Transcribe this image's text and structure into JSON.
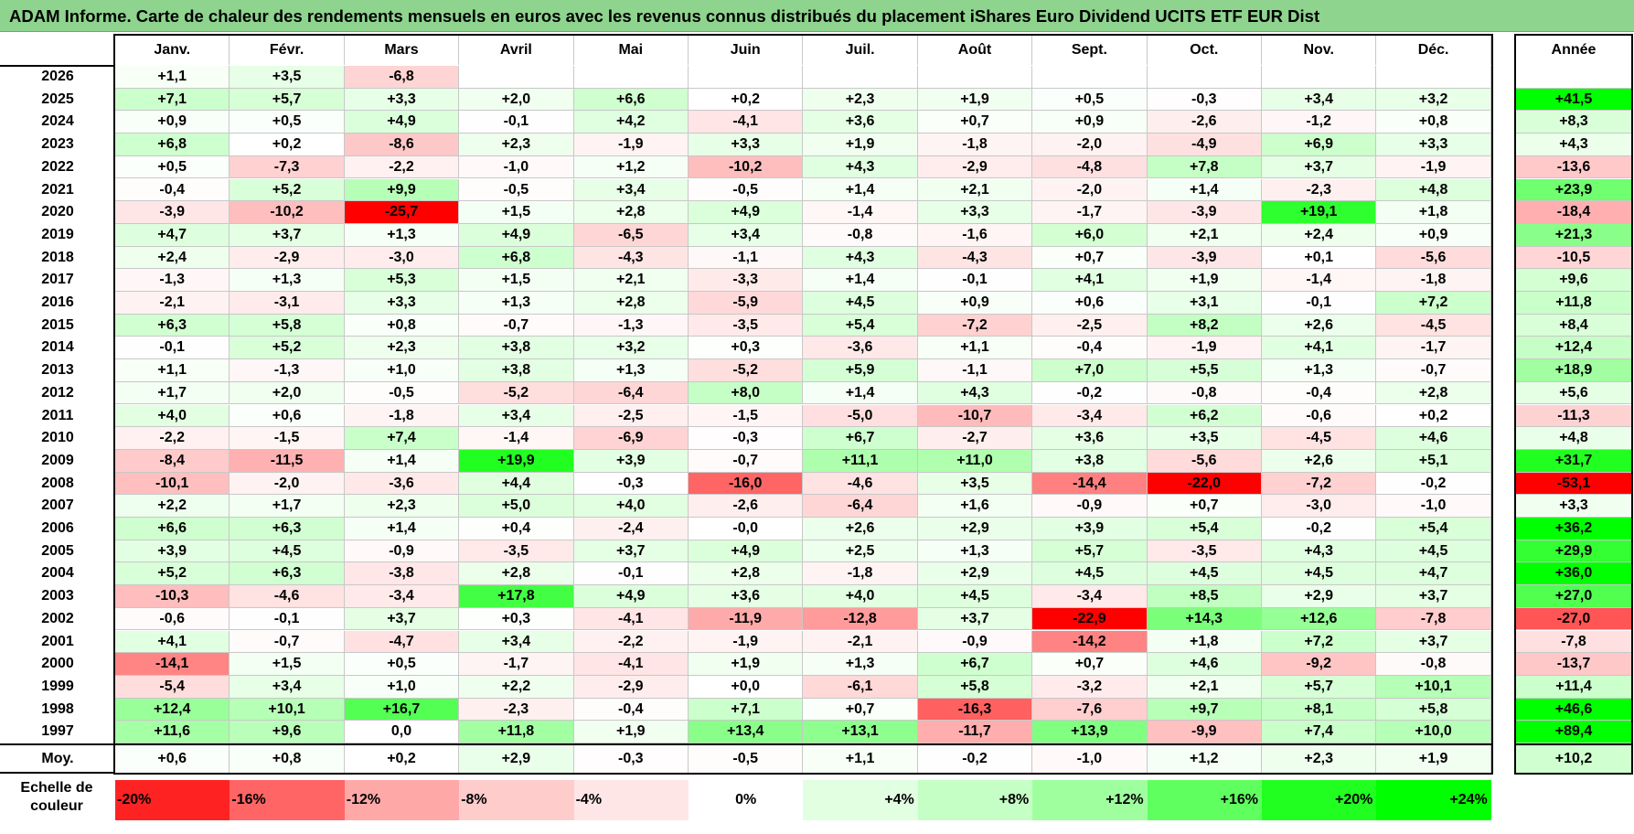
{
  "title": "ADAM Informe. Carte de chaleur des rendements mensuels en euros avec les revenus connus distribués du placement iShares Euro Dividend UCITS ETF EUR Dist",
  "colors": {
    "title_bg": "#8ed48e",
    "neg_max": "#ff0000",
    "pos_max": "#00ff00",
    "neutral": "#ffffff"
  },
  "chart_data": {
    "type": "heatmap",
    "title": "ADAM Informe. Carte de chaleur des rendements mensuels en euros avec les revenus connus distribués du placement iShares Euro Dividend UCITS ETF EUR Dist",
    "columns": [
      "Janv.",
      "Févr.",
      "Mars",
      "Avril",
      "Mai",
      "Juin",
      "Juil.",
      "Août",
      "Sept.",
      "Oct.",
      "Nov.",
      "Déc."
    ],
    "annual_label": "Année",
    "rows": [
      {
        "year": "2026",
        "values": [
          "+1,1",
          "+3,5",
          "-6,8",
          "",
          "",
          "",
          "",
          "",
          "",
          "",
          "",
          ""
        ],
        "annual": ""
      },
      {
        "year": "2025",
        "values": [
          "+7,1",
          "+5,7",
          "+3,3",
          "+2,0",
          "+6,6",
          "+0,2",
          "+2,3",
          "+1,9",
          "+0,5",
          "-0,3",
          "+3,4",
          "+3,2"
        ],
        "annual": "+41,5"
      },
      {
        "year": "2024",
        "values": [
          "+0,9",
          "+0,5",
          "+4,9",
          "-0,1",
          "+4,2",
          "-4,1",
          "+3,6",
          "+0,7",
          "+0,9",
          "-2,6",
          "-1,2",
          "+0,8"
        ],
        "annual": "+8,3"
      },
      {
        "year": "2023",
        "values": [
          "+6,8",
          "+0,2",
          "-8,6",
          "+2,3",
          "-1,9",
          "+3,3",
          "+1,9",
          "-1,8",
          "-2,0",
          "-4,9",
          "+6,9",
          "+3,3"
        ],
        "annual": "+4,3"
      },
      {
        "year": "2022",
        "values": [
          "+0,5",
          "-7,3",
          "-2,2",
          "-1,0",
          "+1,2",
          "-10,2",
          "+4,3",
          "-2,9",
          "-4,8",
          "+7,8",
          "+3,7",
          "-1,9"
        ],
        "annual": "-13,6"
      },
      {
        "year": "2021",
        "values": [
          "-0,4",
          "+5,2",
          "+9,9",
          "-0,5",
          "+3,4",
          "-0,5",
          "+1,4",
          "+2,1",
          "-2,0",
          "+1,4",
          "-2,3",
          "+4,8"
        ],
        "annual": "+23,9"
      },
      {
        "year": "2020",
        "values": [
          "-3,9",
          "-10,2",
          "-25,7",
          "+1,5",
          "+2,8",
          "+4,9",
          "-1,4",
          "+3,3",
          "-1,7",
          "-3,9",
          "+19,1",
          "+1,8"
        ],
        "annual": "-18,4"
      },
      {
        "year": "2019",
        "values": [
          "+4,7",
          "+3,7",
          "+1,3",
          "+4,9",
          "-6,5",
          "+3,4",
          "-0,8",
          "-1,6",
          "+6,0",
          "+2,1",
          "+2,4",
          "+0,9"
        ],
        "annual": "+21,3"
      },
      {
        "year": "2018",
        "values": [
          "+2,4",
          "-2,9",
          "-3,0",
          "+6,8",
          "-4,3",
          "-1,1",
          "+4,3",
          "-4,3",
          "+0,7",
          "-3,9",
          "+0,1",
          "-5,6"
        ],
        "annual": "-10,5"
      },
      {
        "year": "2017",
        "values": [
          "-1,3",
          "+1,3",
          "+5,3",
          "+1,5",
          "+2,1",
          "-3,3",
          "+1,4",
          "-0,1",
          "+4,1",
          "+1,9",
          "-1,4",
          "-1,8"
        ],
        "annual": "+9,6"
      },
      {
        "year": "2016",
        "values": [
          "-2,1",
          "-3,1",
          "+3,3",
          "+1,3",
          "+2,8",
          "-5,9",
          "+4,5",
          "+0,9",
          "+0,6",
          "+3,1",
          "-0,1",
          "+7,2"
        ],
        "annual": "+11,8"
      },
      {
        "year": "2015",
        "values": [
          "+6,3",
          "+5,8",
          "+0,8",
          "-0,7",
          "-1,3",
          "-3,5",
          "+5,4",
          "-7,2",
          "-2,5",
          "+8,2",
          "+2,6",
          "-4,5"
        ],
        "annual": "+8,4"
      },
      {
        "year": "2014",
        "values": [
          "-0,1",
          "+5,2",
          "+2,3",
          "+3,8",
          "+3,2",
          "+0,3",
          "-3,6",
          "+1,1",
          "-0,4",
          "-1,9",
          "+4,1",
          "-1,7"
        ],
        "annual": "+12,4"
      },
      {
        "year": "2013",
        "values": [
          "+1,1",
          "-1,3",
          "+1,0",
          "+3,8",
          "+1,3",
          "-5,2",
          "+5,9",
          "-1,1",
          "+7,0",
          "+5,5",
          "+1,3",
          "-0,7"
        ],
        "annual": "+18,9"
      },
      {
        "year": "2012",
        "values": [
          "+1,7",
          "+2,0",
          "-0,5",
          "-5,2",
          "-6,4",
          "+8,0",
          "+1,4",
          "+4,3",
          "-0,2",
          "-0,8",
          "-0,4",
          "+2,8"
        ],
        "annual": "+5,6"
      },
      {
        "year": "2011",
        "values": [
          "+4,0",
          "+0,6",
          "-1,8",
          "+3,4",
          "-2,5",
          "-1,5",
          "-5,0",
          "-10,7",
          "-3,4",
          "+6,2",
          "-0,6",
          "+0,2"
        ],
        "annual": "-11,3"
      },
      {
        "year": "2010",
        "values": [
          "-2,2",
          "-1,5",
          "+7,4",
          "-1,4",
          "-6,9",
          "-0,3",
          "+6,7",
          "-2,7",
          "+3,6",
          "+3,5",
          "-4,5",
          "+4,6"
        ],
        "annual": "+4,8"
      },
      {
        "year": "2009",
        "values": [
          "-8,4",
          "-11,5",
          "+1,4",
          "+19,9",
          "+3,9",
          "-0,7",
          "+11,1",
          "+11,0",
          "+3,8",
          "-5,6",
          "+2,6",
          "+5,1"
        ],
        "annual": "+31,7"
      },
      {
        "year": "2008",
        "values": [
          "-10,1",
          "-2,0",
          "-3,6",
          "+4,4",
          "-0,3",
          "-16,0",
          "-4,6",
          "+3,5",
          "-14,4",
          "-22,0",
          "-7,2",
          "-0,2"
        ],
        "annual": "-53,1"
      },
      {
        "year": "2007",
        "values": [
          "+2,2",
          "+1,7",
          "+2,3",
          "+5,0",
          "+4,0",
          "-2,6",
          "-6,4",
          "+1,6",
          "-0,9",
          "+0,7",
          "-3,0",
          "-1,0"
        ],
        "annual": "+3,3"
      },
      {
        "year": "2006",
        "values": [
          "+6,6",
          "+6,3",
          "+1,4",
          "+0,4",
          "-2,4",
          "-0,0",
          "+2,6",
          "+2,9",
          "+3,9",
          "+5,4",
          "-0,2",
          "+5,4"
        ],
        "annual": "+36,2"
      },
      {
        "year": "2005",
        "values": [
          "+3,9",
          "+4,5",
          "-0,9",
          "-3,5",
          "+3,7",
          "+4,9",
          "+2,5",
          "+1,3",
          "+5,7",
          "-3,5",
          "+4,3",
          "+4,5"
        ],
        "annual": "+29,9"
      },
      {
        "year": "2004",
        "values": [
          "+5,2",
          "+6,3",
          "-3,8",
          "+2,8",
          "-0,1",
          "+2,8",
          "-1,8",
          "+2,9",
          "+4,5",
          "+4,5",
          "+4,5",
          "+4,7"
        ],
        "annual": "+36,0"
      },
      {
        "year": "2003",
        "values": [
          "-10,3",
          "-4,6",
          "-3,4",
          "+17,8",
          "+4,9",
          "+3,6",
          "+4,0",
          "+4,5",
          "-3,4",
          "+8,5",
          "+2,9",
          "+3,7"
        ],
        "annual": "+27,0"
      },
      {
        "year": "2002",
        "values": [
          "-0,6",
          "-0,1",
          "+3,7",
          "+0,3",
          "-4,1",
          "-11,9",
          "-12,8",
          "+3,7",
          "-22,9",
          "+14,3",
          "+12,6",
          "-7,8"
        ],
        "annual": "-27,0"
      },
      {
        "year": "2001",
        "values": [
          "+4,1",
          "-0,7",
          "-4,7",
          "+3,4",
          "-2,2",
          "-1,9",
          "-2,1",
          "-0,9",
          "-14,2",
          "+1,8",
          "+7,2",
          "+3,7"
        ],
        "annual": "-7,8"
      },
      {
        "year": "2000",
        "values": [
          "-14,1",
          "+1,5",
          "+0,5",
          "-1,7",
          "-4,1",
          "+1,9",
          "+1,3",
          "+6,7",
          "+0,7",
          "+4,6",
          "-9,2",
          "-0,8"
        ],
        "annual": "-13,7"
      },
      {
        "year": "1999",
        "values": [
          "-5,4",
          "+3,4",
          "+1,0",
          "+2,2",
          "-2,9",
          "+0,0",
          "-6,1",
          "+5,8",
          "-3,2",
          "+2,1",
          "+5,7",
          "+10,1"
        ],
        "annual": "+11,4"
      },
      {
        "year": "1998",
        "values": [
          "+12,4",
          "+10,1",
          "+16,7",
          "-2,3",
          "-0,4",
          "+7,1",
          "+0,7",
          "-16,3",
          "-7,6",
          "+9,7",
          "+8,1",
          "+5,8"
        ],
        "annual": "+46,6"
      },
      {
        "year": "1997",
        "values": [
          "+11,6",
          "+9,6",
          "0,0",
          "+11,8",
          "+1,9",
          "+13,4",
          "+13,1",
          "-11,7",
          "+13,9",
          "-9,9",
          "+7,4",
          "+10,0"
        ],
        "annual": "+89,4"
      }
    ],
    "average_label": "Moy.",
    "averages": [
      "+0,6",
      "+0,8",
      "+0,2",
      "+2,9",
      "-0,3",
      "-0,5",
      "+1,1",
      "-0,2",
      "-1,0",
      "+1,2",
      "+2,3",
      "+1,9"
    ],
    "average_annual": "+10,2",
    "scale_label": "Echelle de couleur",
    "scale": [
      {
        "label": "-20%",
        "value": -20
      },
      {
        "label": "-16%",
        "value": -16
      },
      {
        "label": "-12%",
        "value": -12
      },
      {
        "label": "-8%",
        "value": -8
      },
      {
        "label": "-4%",
        "value": -4
      },
      {
        "label": "0%",
        "value": 0
      },
      {
        "label": "+4%",
        "value": 4
      },
      {
        "label": "+8%",
        "value": 8
      },
      {
        "label": "+12%",
        "value": 12
      },
      {
        "label": "+16%",
        "value": 16
      },
      {
        "label": "+20%",
        "value": 20
      },
      {
        "label": "+24%",
        "value": 24
      }
    ]
  }
}
